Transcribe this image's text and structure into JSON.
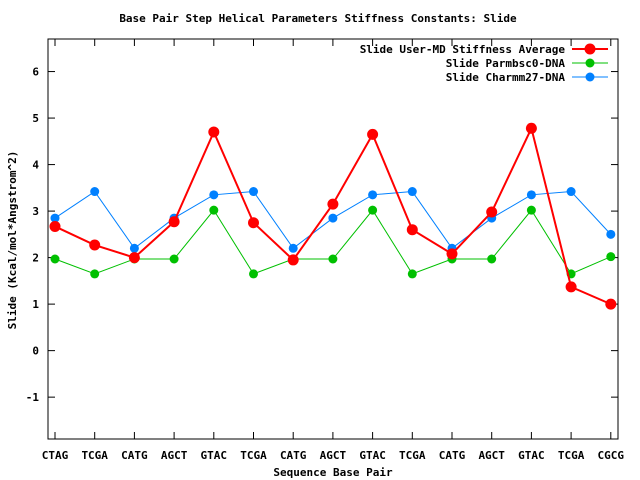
{
  "chart_data": {
    "type": "line",
    "title": "Base Pair Step Helical Parameters Stiffness Constants: Slide",
    "xlabel": "Sequence Base Pair",
    "ylabel": "Slide (Kcal/mol*Angstrom^2)",
    "categories": [
      "CTAG",
      "TCGA",
      "CATG",
      "AGCT",
      "GTAC",
      "TCGA",
      "CATG",
      "AGCT",
      "GTAC",
      "TCGA",
      "CATG",
      "AGCT",
      "GTAC",
      "TCGA",
      "CGCG"
    ],
    "ylim": [
      -1.9,
      6.7
    ],
    "yticks": [
      -1,
      0,
      1,
      2,
      3,
      4,
      5,
      6
    ],
    "grid": false,
    "legend_position": "top-right",
    "series": [
      {
        "name": "Slide User-MD Stiffness Average",
        "color": "#ff0000",
        "values": [
          2.67,
          2.27,
          2.0,
          2.77,
          4.7,
          2.75,
          1.95,
          3.15,
          4.65,
          2.6,
          2.08,
          2.98,
          4.78,
          1.37,
          1.0
        ]
      },
      {
        "name": "Slide Parmbsc0-DNA",
        "color": "#00c000",
        "values": [
          1.97,
          1.65,
          1.97,
          1.97,
          3.02,
          1.65,
          1.97,
          1.97,
          3.02,
          1.65,
          1.97,
          1.97,
          3.02,
          1.65,
          2.02
        ]
      },
      {
        "name": "Slide Charmm27-DNA",
        "color": "#0080ff",
        "values": [
          2.85,
          3.42,
          2.2,
          2.85,
          3.35,
          3.42,
          2.2,
          2.85,
          3.35,
          3.42,
          2.2,
          2.85,
          3.35,
          3.42,
          2.5
        ]
      }
    ]
  }
}
